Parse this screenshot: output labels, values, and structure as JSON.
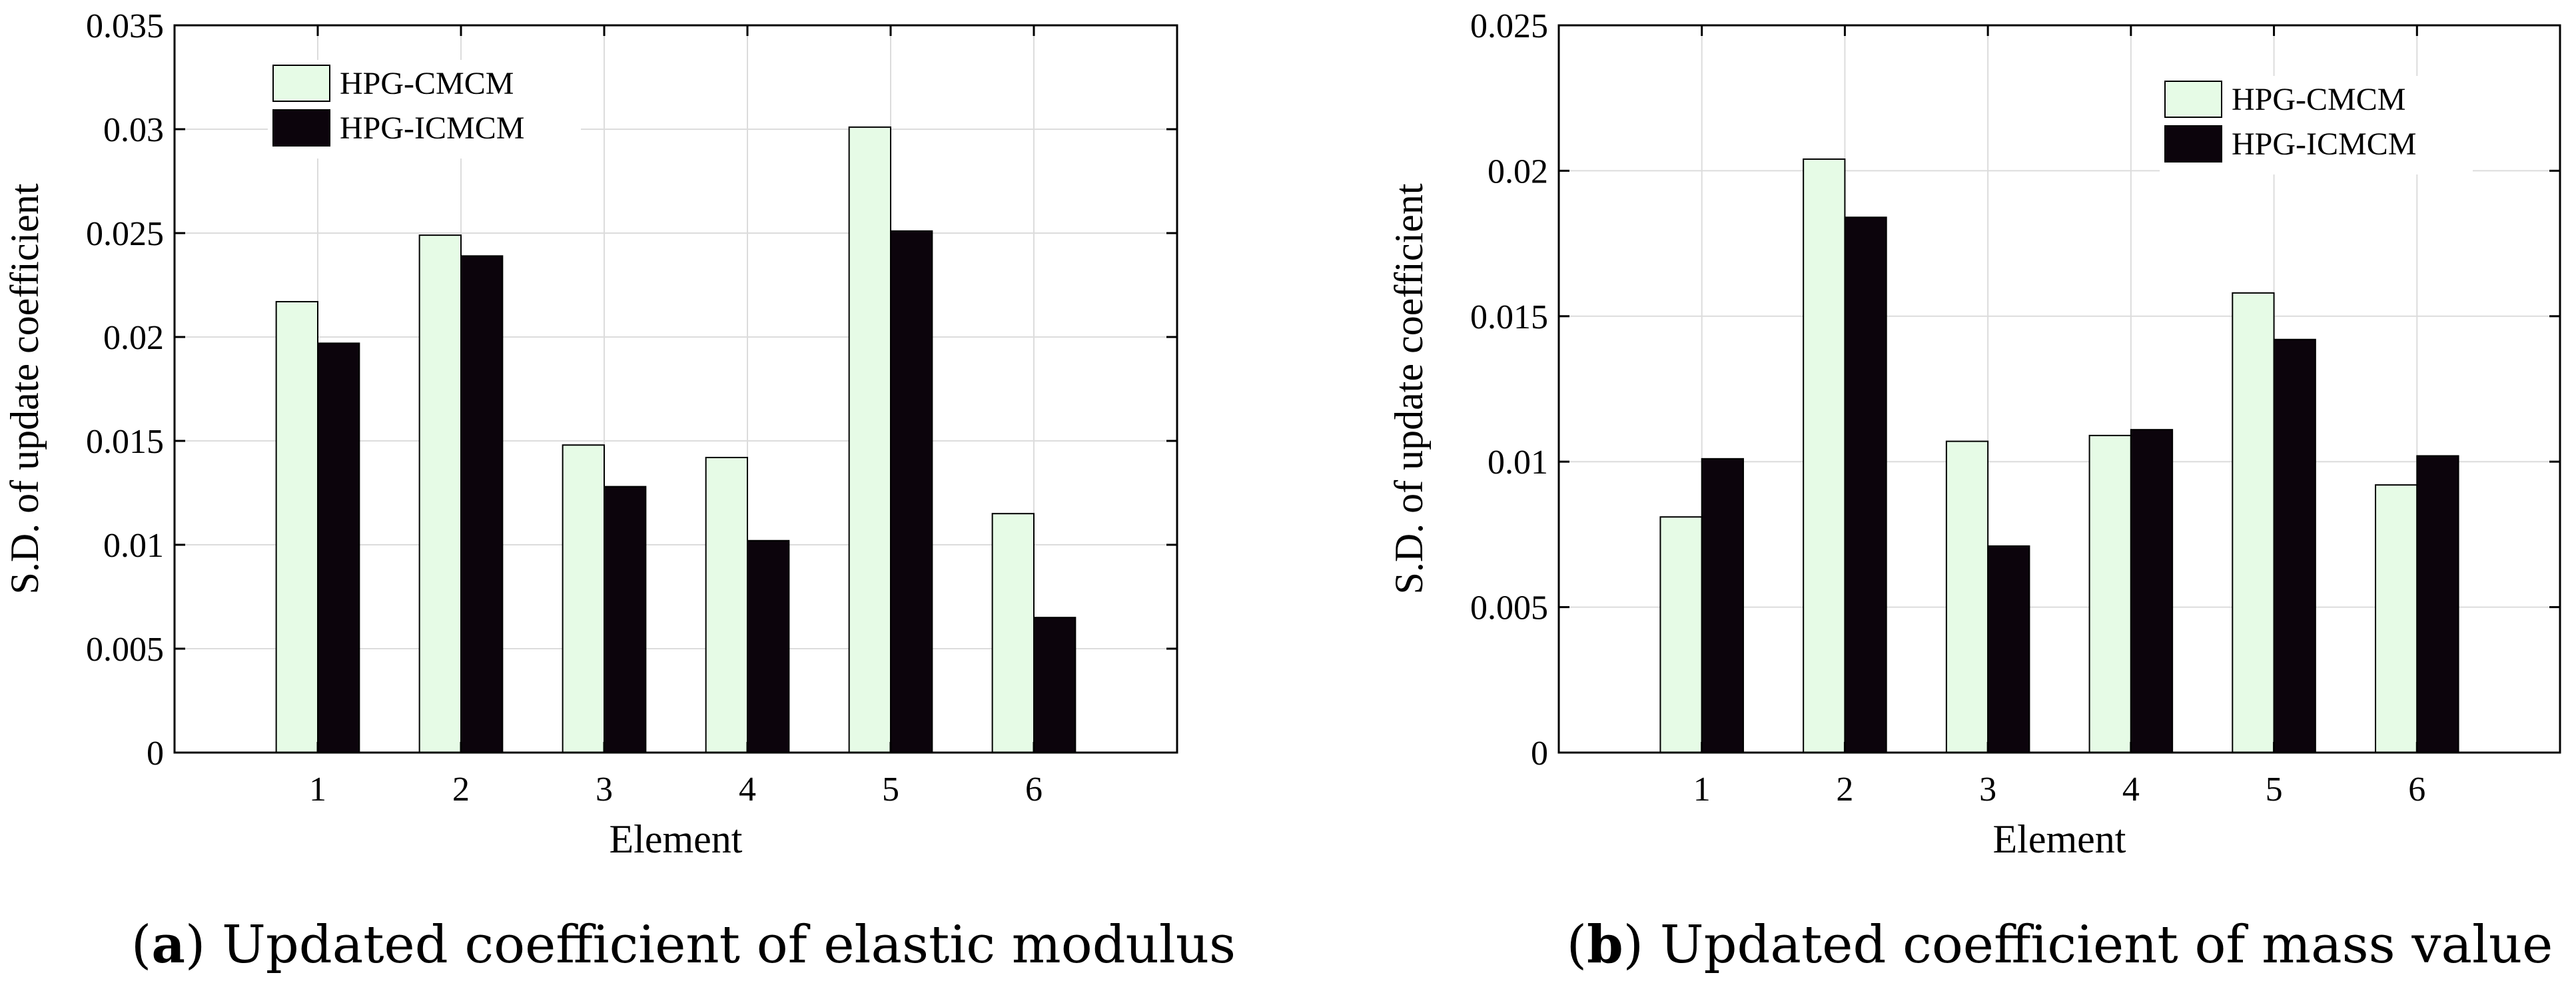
{
  "colors": {
    "series1": "#e6fbe6",
    "series2": "#0c040c",
    "grid": "#dcdcdc",
    "axis": "#000000"
  },
  "chart_data": [
    {
      "type": "bar",
      "panel_label": "a",
      "caption": "Updated coefficient of elastic modulus",
      "xlabel": "Element",
      "ylabel": "S.D. of update coefficient",
      "categories": [
        "1",
        "2",
        "3",
        "4",
        "5",
        "6"
      ],
      "xlim": [
        0,
        7
      ],
      "ylim": [
        0,
        0.035
      ],
      "yticks": [
        "0",
        "0.005",
        "0.01",
        "0.015",
        "0.02",
        "0.025",
        "0.03",
        "0.035"
      ],
      "grid": true,
      "legend_position": "top-left",
      "series": [
        {
          "name": "HPG-CMCM",
          "values": [
            0.0217,
            0.0249,
            0.0148,
            0.0142,
            0.0301,
            0.0115
          ]
        },
        {
          "name": "HPG-ICMCM",
          "values": [
            0.0197,
            0.0239,
            0.0128,
            0.0102,
            0.0251,
            0.0065
          ]
        }
      ]
    },
    {
      "type": "bar",
      "panel_label": "b",
      "caption": "Updated coefficient of mass value",
      "xlabel": "Element",
      "ylabel": "S.D. of update coefficient",
      "categories": [
        "1",
        "2",
        "3",
        "4",
        "5",
        "6"
      ],
      "xlim": [
        0,
        7
      ],
      "ylim": [
        0,
        0.025
      ],
      "yticks": [
        "0",
        "0.005",
        "0.01",
        "0.015",
        "0.02",
        "0.025"
      ],
      "grid": true,
      "legend_position": "top-right",
      "series": [
        {
          "name": "HPG-CMCM",
          "values": [
            0.0081,
            0.0204,
            0.0107,
            0.0109,
            0.0158,
            0.0092
          ]
        },
        {
          "name": "HPG-ICMCM",
          "values": [
            0.0101,
            0.0184,
            0.0071,
            0.0111,
            0.0142,
            0.0102
          ]
        }
      ]
    }
  ]
}
